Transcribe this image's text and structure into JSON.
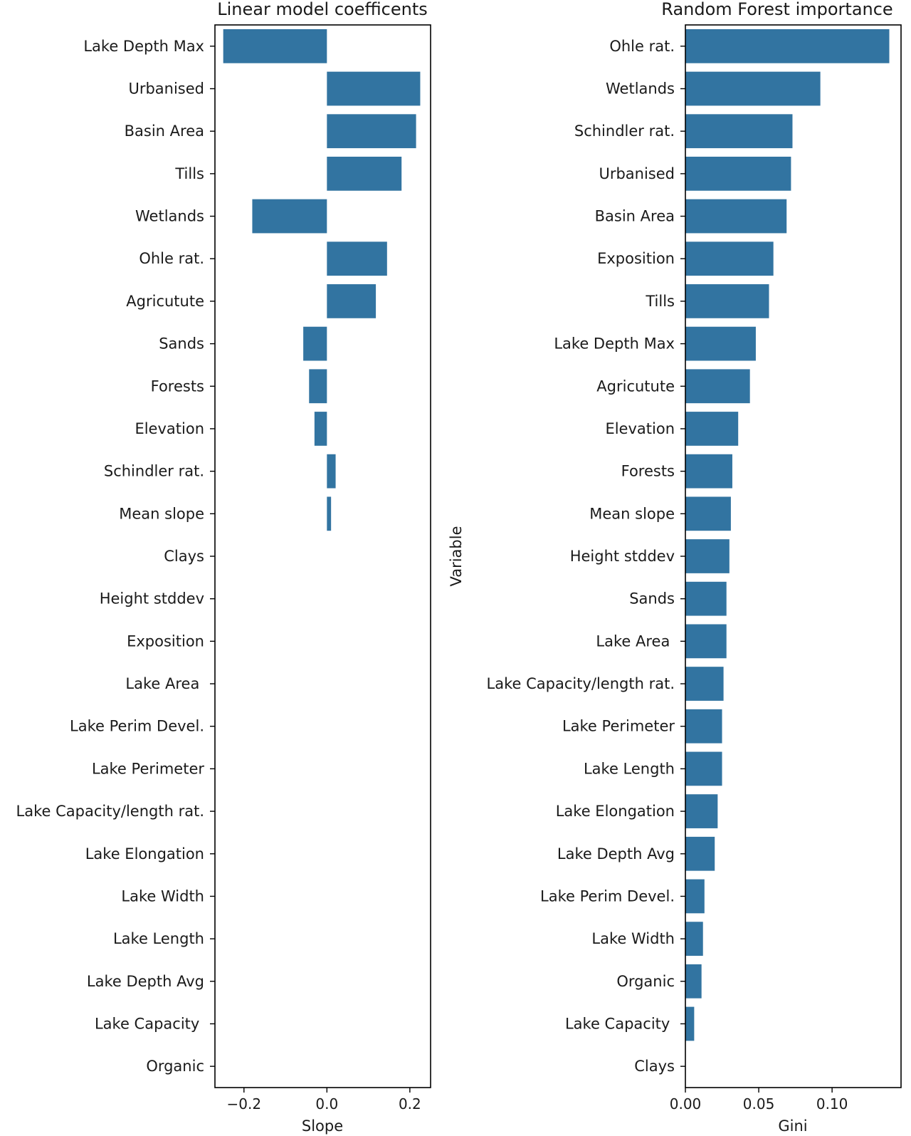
{
  "bar_color": "#3274a1",
  "chart_data": [
    {
      "type": "bar",
      "orientation": "horizontal",
      "title": "Linear model coefficents",
      "xlabel": "Slope",
      "ylabel": "",
      "xlim": [
        -0.27,
        0.25
      ],
      "grid": false,
      "xticks": [
        -0.2,
        0.0,
        0.2
      ],
      "xtick_labels": [
        "−0.2",
        "0.0",
        "0.2"
      ],
      "categories": [
        "Lake Depth Max",
        "Urbanised",
        "Basin Area",
        "Tills",
        "Wetlands",
        "Ohle rat.",
        "Agricutute",
        "Sands",
        "Forests",
        "Elevation",
        "Schindler rat.",
        "Mean slope",
        "Clays",
        "Height stddev",
        "Exposition",
        "Lake Area ",
        "Lake Perim Devel.",
        "Lake Perimeter",
        "Lake Capacity/length rat.",
        "Lake Elongation",
        "Lake Width",
        "Lake Length",
        "Lake Depth Avg",
        "Lake Capacity ",
        "Organic"
      ],
      "values": [
        -0.25,
        0.225,
        0.215,
        0.18,
        -0.18,
        0.145,
        0.118,
        -0.057,
        -0.043,
        -0.03,
        0.021,
        0.01,
        0,
        0,
        0,
        0,
        0,
        0,
        0,
        0,
        0,
        0,
        0,
        0,
        0
      ]
    },
    {
      "type": "bar",
      "orientation": "horizontal",
      "title": "Random Forest importance",
      "xlabel": "Gini",
      "ylabel": "Variable",
      "xlim": [
        0.0,
        0.147
      ],
      "grid": false,
      "xticks": [
        0.0,
        0.05,
        0.1
      ],
      "xtick_labels": [
        "0.00",
        "0.05",
        "0.10"
      ],
      "categories": [
        "Ohle rat.",
        "Wetlands",
        "Schindler rat.",
        "Urbanised",
        "Basin Area",
        "Exposition",
        "Tills",
        "Lake Depth Max",
        "Agricutute",
        "Elevation",
        "Forests",
        "Mean slope",
        "Height stddev",
        "Sands",
        "Lake Area ",
        "Lake Capacity/length rat.",
        "Lake Perimeter",
        "Lake Length",
        "Lake Elongation",
        "Lake Depth Avg",
        "Lake Perim Devel.",
        "Lake Width",
        "Organic",
        "Lake Capacity ",
        "Clays"
      ],
      "values": [
        0.139,
        0.092,
        0.073,
        0.072,
        0.069,
        0.06,
        0.057,
        0.048,
        0.044,
        0.036,
        0.032,
        0.031,
        0.03,
        0.028,
        0.028,
        0.026,
        0.025,
        0.025,
        0.022,
        0.02,
        0.013,
        0.012,
        0.011,
        0.006,
        0.0
      ]
    }
  ]
}
